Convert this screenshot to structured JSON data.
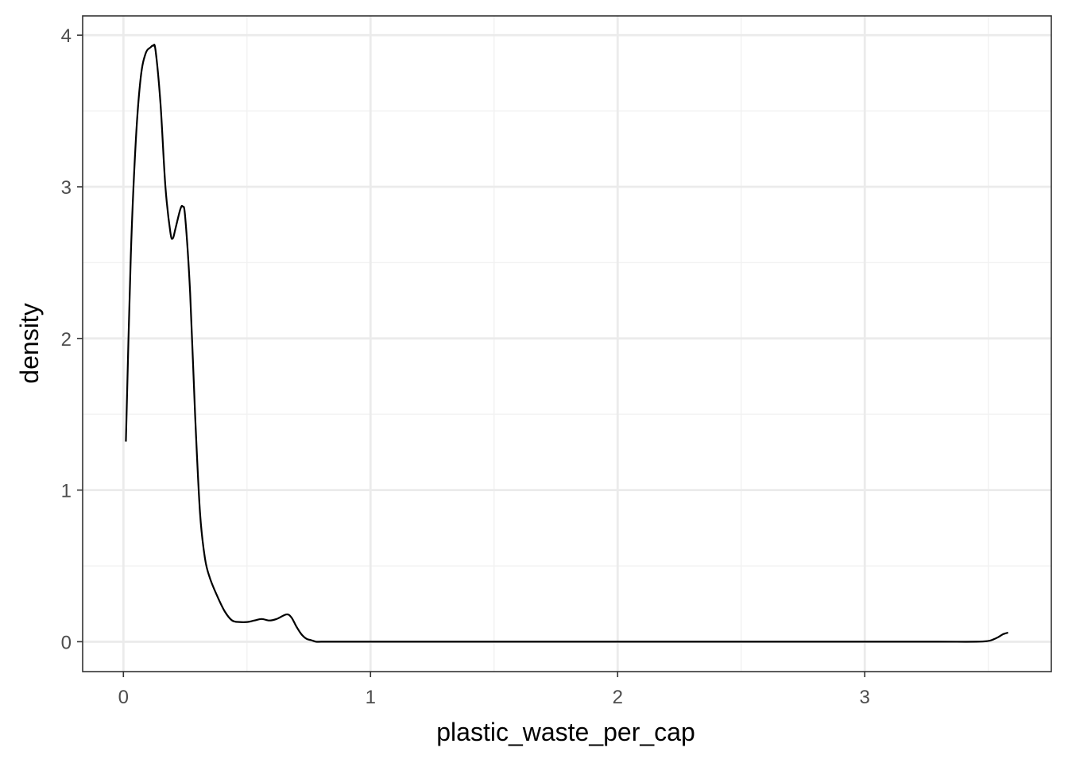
{
  "chart_data": {
    "type": "line",
    "subtype": "density",
    "title": "",
    "xlabel": "plastic_waste_per_cap",
    "ylabel": "density",
    "xlim": [
      -0.165,
      3.755
    ],
    "ylim": [
      -0.197,
      4.127
    ],
    "x_ticks": [
      0,
      1,
      2,
      3
    ],
    "x_tick_labels": [
      "0",
      "1",
      "2",
      "3"
    ],
    "y_ticks": [
      0,
      1,
      2,
      3,
      4
    ],
    "y_tick_labels": [
      "0",
      "1",
      "2",
      "3",
      "4"
    ],
    "x_minor_ticks": [
      0.5,
      1.5,
      2.5,
      3.5
    ],
    "y_minor_ticks": [
      0.5,
      1.5,
      2.5,
      3.5
    ],
    "grid": true,
    "legend": "none",
    "colors": {
      "line": "#000000",
      "grid_major": "#ebebeb",
      "grid_minor": "#f2f2f2",
      "panel_border": "#333333",
      "background": "#ffffff"
    },
    "series": [
      {
        "x": [
          0.01,
          0.03,
          0.05,
          0.07,
          0.09,
          0.11,
          0.12,
          0.13,
          0.15,
          0.17,
          0.19,
          0.2,
          0.21,
          0.23,
          0.24,
          0.25,
          0.27,
          0.29,
          0.31,
          0.33,
          0.35,
          0.38,
          0.41,
          0.44,
          0.47,
          0.5,
          0.53,
          0.56,
          0.59,
          0.62,
          0.66,
          0.68,
          0.7,
          0.72,
          0.74,
          0.76,
          0.78,
          0.8,
          0.85,
          1.0,
          1.5,
          2.0,
          2.5,
          3.0,
          3.3,
          3.45,
          3.5,
          3.52,
          3.54,
          3.56,
          3.58
        ],
        "y": [
          1.32,
          2.55,
          3.3,
          3.72,
          3.88,
          3.92,
          3.93,
          3.9,
          3.55,
          3.0,
          2.7,
          2.66,
          2.72,
          2.85,
          2.87,
          2.8,
          2.3,
          1.5,
          0.85,
          0.55,
          0.42,
          0.3,
          0.2,
          0.14,
          0.13,
          0.13,
          0.14,
          0.15,
          0.14,
          0.15,
          0.18,
          0.16,
          0.1,
          0.05,
          0.02,
          0.01,
          0.0,
          0.0,
          0.0,
          0.0,
          0.0,
          0.0,
          0.0,
          0.0,
          0.0,
          0.0,
          0.005,
          0.015,
          0.03,
          0.05,
          0.06
        ]
      }
    ]
  }
}
